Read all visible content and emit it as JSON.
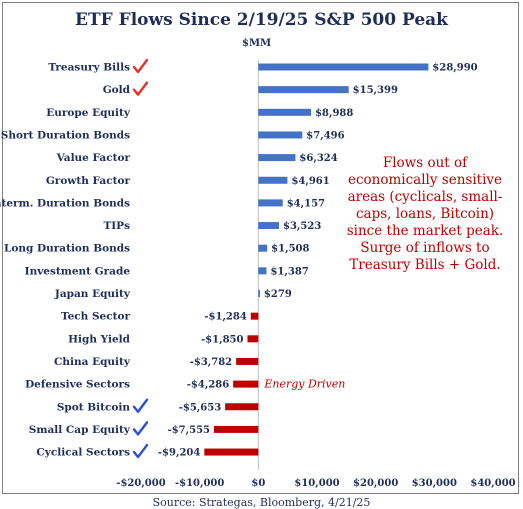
{
  "title": "ETF Flows Since 2/19/25 S&P 500 Peak",
  "unit_label": "$MM",
  "annotation_lines": [
    "Flows out of",
    "economically sensitive",
    "areas (cyclicals, small-",
    "caps, loans, Bitcoin)",
    "since the market peak.",
    "Surge of inflows to",
    "Treasury Bills + Gold."
  ],
  "source": "Source: Strategas, Bloomberg, 4/21/25",
  "colors": {
    "positive": "#4472c4",
    "negative": "#c00000",
    "text": "#1f2d5a",
    "red_check": "#e8302a",
    "blue_check": "#2a4fd8"
  },
  "chart_data": {
    "type": "bar",
    "orientation": "horizontal",
    "title": "ETF Flows Since 2/19/25 S&P 500 Peak",
    "xlabel": "$MM",
    "xlim": [
      -20000,
      40000
    ],
    "xticks": [
      -20000,
      -10000,
      0,
      10000,
      20000,
      30000,
      40000
    ],
    "xtick_labels": [
      "-$20,000",
      "-$10,000",
      "$0",
      "$10,000",
      "$20,000",
      "$30,000",
      "$40,000"
    ],
    "grid": false,
    "categories": [
      "Treasury Bills",
      "Gold",
      "Europe Equity",
      "Short Duration Bonds",
      "Value Factor",
      "Growth Factor",
      "Interm. Duration Bonds",
      "TIPs",
      "Long Duration Bonds",
      "Investment Grade",
      "Japan Equity",
      "Tech Sector",
      "High Yield",
      "China Equity",
      "Defensive Sectors",
      "Spot Bitcoin",
      "Small Cap Equity",
      "Cyclical Sectors"
    ],
    "values": [
      28990,
      15399,
      8988,
      7496,
      6324,
      4961,
      4157,
      3523,
      1508,
      1387,
      279,
      -1284,
      -1850,
      -3782,
      -4286,
      -5653,
      -7555,
      -9204
    ],
    "value_labels": [
      "$28,990",
      "$15,399",
      "$8,988",
      "$7,496",
      "$6,324",
      "$4,961",
      "$4,157",
      "$3,523",
      "$1,508",
      "$1,387",
      "$279",
      "-$1,284",
      "-$1,850",
      "-$3,782",
      "-$4,286",
      "-$5,653",
      "-$7,555",
      "-$9,204"
    ],
    "checkmarks": [
      {
        "category": "Treasury Bills",
        "color": "red"
      },
      {
        "category": "Gold",
        "color": "red"
      },
      {
        "category": "Spot Bitcoin",
        "color": "blue"
      },
      {
        "category": "Small Cap Equity",
        "color": "blue"
      },
      {
        "category": "Cyclical Sectors",
        "color": "blue"
      }
    ],
    "annotations": [
      {
        "text": "Energy Driven",
        "category": "Defensive Sectors"
      }
    ]
  }
}
